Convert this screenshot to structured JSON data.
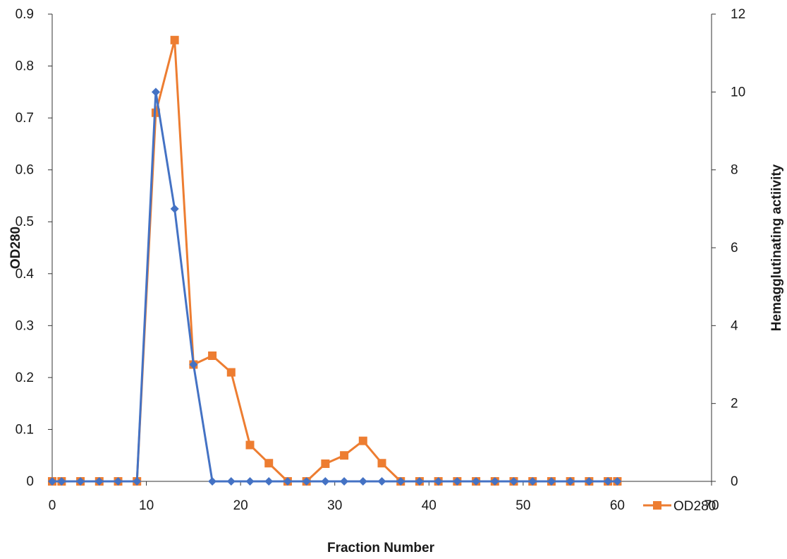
{
  "chart_data": {
    "type": "line",
    "xlabel": "Fraction Number",
    "ylabel_left": "OD280",
    "ylabel_right": "Hemagglutinating actiivity",
    "xlim": [
      0,
      70
    ],
    "ylim_left": [
      0,
      0.9
    ],
    "ylim_right": [
      0,
      12
    ],
    "x_ticks": [
      "0",
      "10",
      "20",
      "30",
      "40",
      "50",
      "60",
      "70"
    ],
    "y_left_ticks": [
      "0",
      "0.1",
      "0.2",
      "0.3",
      "0.4",
      "0.5",
      "0.6",
      "0.7",
      "0.8",
      "0.9"
    ],
    "y_right_ticks": [
      "0",
      "2",
      "4",
      "6",
      "8",
      "10",
      "12"
    ],
    "grid": false,
    "legend_position": "bottom-right",
    "series": [
      {
        "name": "OD280",
        "axis": "left",
        "color": "#ED7D31",
        "marker": "square",
        "x": [
          0,
          1,
          3,
          5,
          7,
          9,
          11,
          13,
          15,
          17,
          19,
          21,
          23,
          25,
          27,
          29,
          31,
          33,
          35,
          37,
          39,
          41,
          43,
          45,
          47,
          49,
          51,
          53,
          55,
          57,
          59,
          60
        ],
        "values": [
          0,
          0,
          0,
          0,
          0,
          0,
          0.71,
          0.85,
          0.225,
          0.242,
          0.21,
          0.07,
          0.035,
          0,
          0,
          0.034,
          0.05,
          0.078,
          0.035,
          0,
          0,
          0,
          0,
          0,
          0,
          0,
          0,
          0,
          0,
          0,
          0,
          0
        ]
      },
      {
        "axis": "right",
        "color": "#4472C4",
        "marker": "diamond",
        "x": [
          0,
          1,
          3,
          5,
          7,
          9,
          11,
          13,
          15,
          17,
          19,
          21,
          23,
          25,
          27,
          29,
          31,
          33,
          35,
          37,
          39,
          41,
          43,
          45,
          47,
          49,
          51,
          53,
          55,
          57,
          59,
          60
        ],
        "values": [
          0,
          0,
          0,
          0,
          0,
          0,
          10,
          7,
          3,
          0,
          0,
          0,
          0,
          0,
          0,
          0,
          0,
          0,
          0,
          0,
          0,
          0,
          0,
          0,
          0,
          0,
          0,
          0,
          0,
          0,
          0,
          0
        ]
      }
    ]
  }
}
